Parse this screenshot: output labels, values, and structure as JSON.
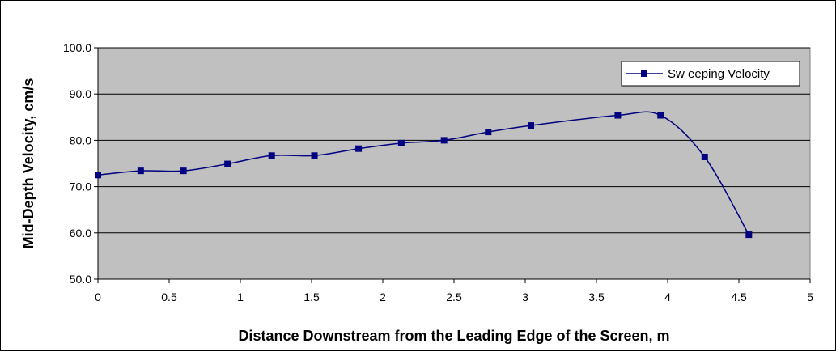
{
  "chart_data": {
    "type": "line",
    "title": "",
    "xlabel": "Distance Downstream from the Leading Edge of the Screen, m",
    "ylabel": "Mid-Depth Velocity, cm/s",
    "xlim": [
      0,
      5
    ],
    "ylim": [
      50,
      100
    ],
    "x_ticks": [
      0,
      0.5,
      1,
      1.5,
      2,
      2.5,
      3,
      3.5,
      4,
      4.5,
      5
    ],
    "x_tick_labels": [
      "0",
      "0.5",
      "1",
      "1.5",
      "2",
      "2.5",
      "3",
      "3.5",
      "4",
      "4.5",
      "5"
    ],
    "y_ticks": [
      50,
      60,
      70,
      80,
      90,
      100
    ],
    "y_tick_labels": [
      "50.0",
      "60.0",
      "70.0",
      "80.0",
      "90.0",
      "100.0"
    ],
    "grid": "horizontal",
    "plot_background": "#c0c0c0",
    "legend_position": "top-right",
    "series": [
      {
        "name": "Sw eeping Velocity",
        "color": "#000080",
        "marker": "square",
        "x": [
          0,
          0.3,
          0.6,
          0.91,
          1.22,
          1.52,
          1.83,
          2.13,
          2.43,
          2.74,
          3.04,
          3.65,
          3.95,
          4.26,
          4.57
        ],
        "y": [
          72.5,
          73.4,
          73.4,
          74.9,
          76.7,
          76.7,
          78.2,
          79.4,
          80.0,
          81.8,
          83.2,
          85.4,
          85.4,
          76.4,
          59.6
        ]
      }
    ]
  }
}
